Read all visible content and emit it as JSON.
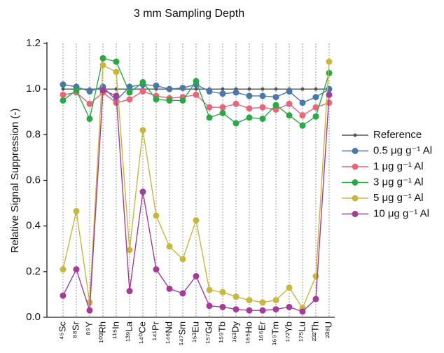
{
  "chart_data": {
    "type": "line",
    "title": "3 mm Sampling Depth",
    "y_label": "Relative Signal Suppression (-)",
    "categories": [
      "⁴⁵Sc",
      "⁸⁸Sr",
      "⁸⁹Y",
      "¹⁰³Rh",
      "¹¹⁵In",
      "¹³⁹La",
      "¹⁴⁰Ce",
      "¹⁴¹Pr",
      "¹⁴⁶Nd",
      "¹⁴⁷Sm",
      "¹⁵³Eu",
      "¹⁵⁷Gd",
      "¹⁵⁹Tb",
      "¹⁶³Dy",
      "¹⁶⁵Ho",
      "¹⁶⁶Er",
      "¹⁶⁹Tm",
      "¹⁷²Yb",
      "¹⁷⁵Lu",
      "²³²Th",
      "²³⁸U"
    ],
    "series": [
      {
        "name": "Reference",
        "color": "#555555",
        "values": [
          1,
          1,
          1,
          1,
          1,
          1,
          1,
          1,
          1,
          1,
          1,
          1,
          1,
          1,
          1,
          1,
          1,
          1,
          1,
          1,
          1
        ]
      },
      {
        "name": "0.5 μg g⁻¹ Al",
        "color": "#4a78aa",
        "values": [
          1.02,
          1.01,
          0.99,
          1.01,
          0.95,
          1.01,
          1.02,
          1.015,
          1.0,
          1.005,
          1.02,
          0.99,
          0.98,
          0.985,
          0.97,
          0.97,
          0.965,
          0.99,
          0.94,
          0.965,
          1.0
        ]
      },
      {
        "name": "1 μg g⁻¹ Al",
        "color": "#e8667a",
        "values": [
          0.975,
          0.985,
          0.935,
          0.985,
          0.94,
          0.955,
          0.99,
          0.97,
          0.96,
          0.965,
          0.975,
          0.92,
          0.92,
          0.935,
          0.915,
          0.92,
          0.91,
          0.935,
          0.885,
          0.92,
          0.94
        ]
      },
      {
        "name": "3 μg g⁻¹ Al",
        "color": "#2aa845",
        "values": [
          0.95,
          0.995,
          0.87,
          1.135,
          1.12,
          0.985,
          1.03,
          0.955,
          0.95,
          0.95,
          1.035,
          0.875,
          0.895,
          0.85,
          0.875,
          0.87,
          0.93,
          0.885,
          0.84,
          0.88,
          1.07
        ]
      },
      {
        "name": "5 μg g⁻¹ Al",
        "color": "#c9b63c",
        "values": [
          0.21,
          0.465,
          0.065,
          1.105,
          1.075,
          0.295,
          0.82,
          0.445,
          0.31,
          0.255,
          0.425,
          0.12,
          0.11,
          0.09,
          0.075,
          0.065,
          0.075,
          0.13,
          0.04,
          0.18,
          1.12
        ]
      },
      {
        "name": "10 μg g⁻¹ Al",
        "color": "#a23c96",
        "values": [
          0.095,
          0.21,
          0.03,
          0.995,
          0.97,
          0.115,
          0.55,
          0.21,
          0.125,
          0.105,
          0.18,
          0.05,
          0.045,
          0.035,
          0.03,
          0.03,
          0.035,
          0.045,
          0.025,
          0.08,
          0.975
        ]
      }
    ],
    "ylim": [
      0,
      1.2
    ],
    "yticks": [
      {
        "value": 0,
        "label": "0.0"
      },
      {
        "value": 0.2,
        "label": "0.2"
      },
      {
        "value": 0.4,
        "label": "0.4"
      },
      {
        "value": 0.6,
        "label": "0.6"
      },
      {
        "value": 0.8,
        "label": "0.8"
      },
      {
        "value": 1,
        "label": "1.0"
      },
      {
        "value": 1.2,
        "label": "1.2"
      }
    ],
    "grid": true,
    "legend": "right"
  }
}
